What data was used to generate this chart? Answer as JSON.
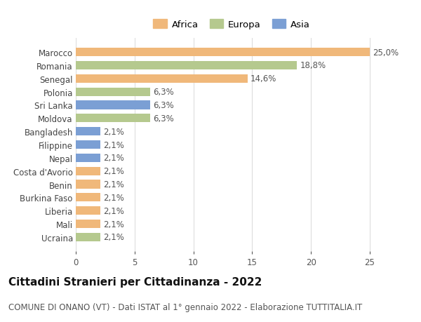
{
  "categories": [
    "Ucraina",
    "Mali",
    "Liberia",
    "Burkina Faso",
    "Benin",
    "Costa d'Avorio",
    "Nepal",
    "Filippine",
    "Bangladesh",
    "Moldova",
    "Sri Lanka",
    "Polonia",
    "Senegal",
    "Romania",
    "Marocco"
  ],
  "values": [
    2.1,
    2.1,
    2.1,
    2.1,
    2.1,
    2.1,
    2.1,
    2.1,
    2.1,
    6.3,
    6.3,
    6.3,
    14.6,
    18.8,
    25.0
  ],
  "colors": [
    "#b5c98e",
    "#f0b87a",
    "#f0b87a",
    "#f0b87a",
    "#f0b87a",
    "#f0b87a",
    "#7b9fd4",
    "#7b9fd4",
    "#7b9fd4",
    "#b5c98e",
    "#7b9fd4",
    "#b5c98e",
    "#f0b87a",
    "#b5c98e",
    "#f0b87a"
  ],
  "labels": [
    "2,1%",
    "2,1%",
    "2,1%",
    "2,1%",
    "2,1%",
    "2,1%",
    "2,1%",
    "2,1%",
    "2,1%",
    "6,3%",
    "6,3%",
    "6,3%",
    "14,6%",
    "18,8%",
    "25,0%"
  ],
  "legend": [
    {
      "label": "Africa",
      "color": "#f0b87a"
    },
    {
      "label": "Europa",
      "color": "#b5c98e"
    },
    {
      "label": "Asia",
      "color": "#7b9fd4"
    }
  ],
  "xlim": [
    0,
    26.5
  ],
  "xticks": [
    0,
    5,
    10,
    15,
    20,
    25
  ],
  "title": "Cittadini Stranieri per Cittadinanza - 2022",
  "subtitle": "COMUNE DI ONANO (VT) - Dati ISTAT al 1° gennaio 2022 - Elaborazione TUTTITALIA.IT",
  "background_color": "#ffffff",
  "grid_color": "#dddddd",
  "bar_height": 0.65,
  "label_fontsize": 8.5,
  "tick_fontsize": 8.5,
  "title_fontsize": 11,
  "subtitle_fontsize": 8.5,
  "legend_fontsize": 9.5
}
